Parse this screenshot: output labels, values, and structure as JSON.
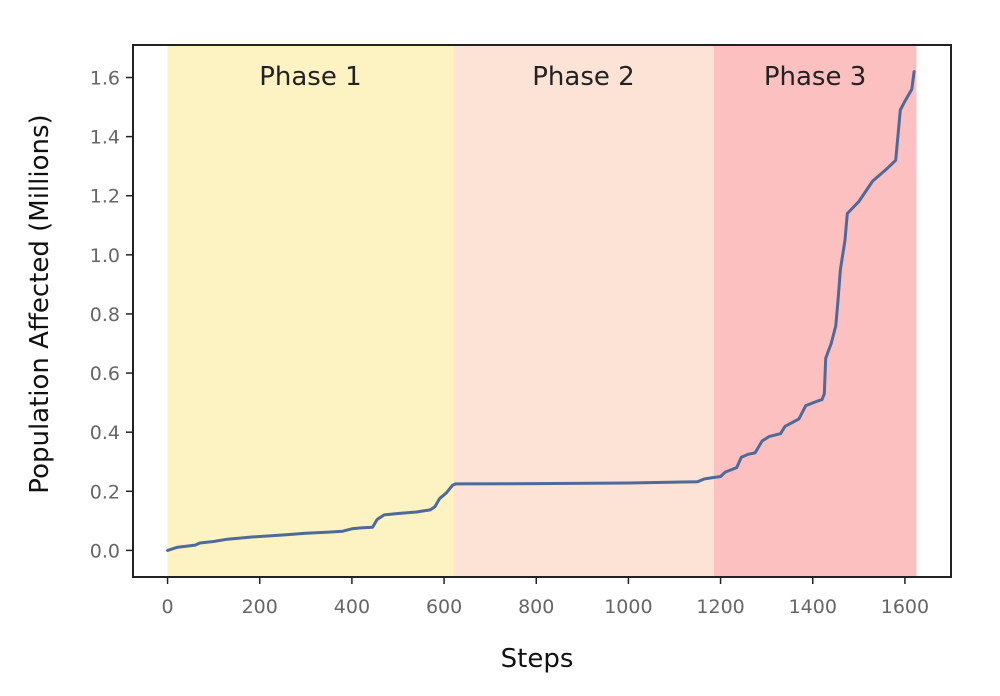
{
  "chart_data": {
    "type": "line",
    "xlabel": "Steps",
    "ylabel": "Population Affected (Millions)",
    "xlim": [
      -75,
      1700
    ],
    "ylim": [
      -0.09,
      1.71
    ],
    "x_ticks": [
      0,
      200,
      400,
      600,
      800,
      1000,
      1200,
      1400,
      1600
    ],
    "y_ticks": [
      0.0,
      0.2,
      0.4,
      0.6,
      0.8,
      1.0,
      1.2,
      1.4,
      1.6
    ],
    "y_tick_labels": [
      "0.0",
      "0.2",
      "0.4",
      "0.6",
      "0.8",
      "1.0",
      "1.2",
      "1.4",
      "1.6"
    ],
    "grid": false,
    "phases": [
      {
        "label": "Phase 1",
        "start": 0,
        "end": 620,
        "color": "#fdf3c2"
      },
      {
        "label": "Phase 2",
        "start": 620,
        "end": 1185,
        "color": "#fde3d6"
      },
      {
        "label": "Phase 3",
        "start": 1185,
        "end": 1625,
        "color": "#fdc0c1"
      }
    ],
    "series": [
      {
        "color": "#4d6a9a",
        "points": [
          [
            0,
            0.0
          ],
          [
            20,
            0.01
          ],
          [
            60,
            0.018
          ],
          [
            70,
            0.025
          ],
          [
            100,
            0.03
          ],
          [
            130,
            0.038
          ],
          [
            180,
            0.045
          ],
          [
            250,
            0.052
          ],
          [
            300,
            0.058
          ],
          [
            350,
            0.062
          ],
          [
            380,
            0.065
          ],
          [
            400,
            0.073
          ],
          [
            420,
            0.076
          ],
          [
            445,
            0.078
          ],
          [
            455,
            0.105
          ],
          [
            470,
            0.12
          ],
          [
            500,
            0.125
          ],
          [
            540,
            0.13
          ],
          [
            570,
            0.137
          ],
          [
            580,
            0.148
          ],
          [
            590,
            0.175
          ],
          [
            605,
            0.195
          ],
          [
            618,
            0.22
          ],
          [
            625,
            0.225
          ],
          [
            800,
            0.226
          ],
          [
            1000,
            0.228
          ],
          [
            1150,
            0.232
          ],
          [
            1165,
            0.242
          ],
          [
            1200,
            0.25
          ],
          [
            1210,
            0.265
          ],
          [
            1235,
            0.28
          ],
          [
            1245,
            0.315
          ],
          [
            1260,
            0.325
          ],
          [
            1275,
            0.33
          ],
          [
            1290,
            0.37
          ],
          [
            1305,
            0.385
          ],
          [
            1330,
            0.395
          ],
          [
            1340,
            0.42
          ],
          [
            1355,
            0.432
          ],
          [
            1370,
            0.445
          ],
          [
            1385,
            0.49
          ],
          [
            1410,
            0.505
          ],
          [
            1420,
            0.51
          ],
          [
            1425,
            0.53
          ],
          [
            1428,
            0.65
          ],
          [
            1440,
            0.7
          ],
          [
            1450,
            0.76
          ],
          [
            1455,
            0.85
          ],
          [
            1460,
            0.95
          ],
          [
            1470,
            1.05
          ],
          [
            1475,
            1.14
          ],
          [
            1500,
            1.18
          ],
          [
            1530,
            1.25
          ],
          [
            1560,
            1.29
          ],
          [
            1580,
            1.32
          ],
          [
            1590,
            1.49
          ],
          [
            1600,
            1.52
          ],
          [
            1615,
            1.56
          ],
          [
            1620,
            1.62
          ]
        ]
      }
    ]
  }
}
